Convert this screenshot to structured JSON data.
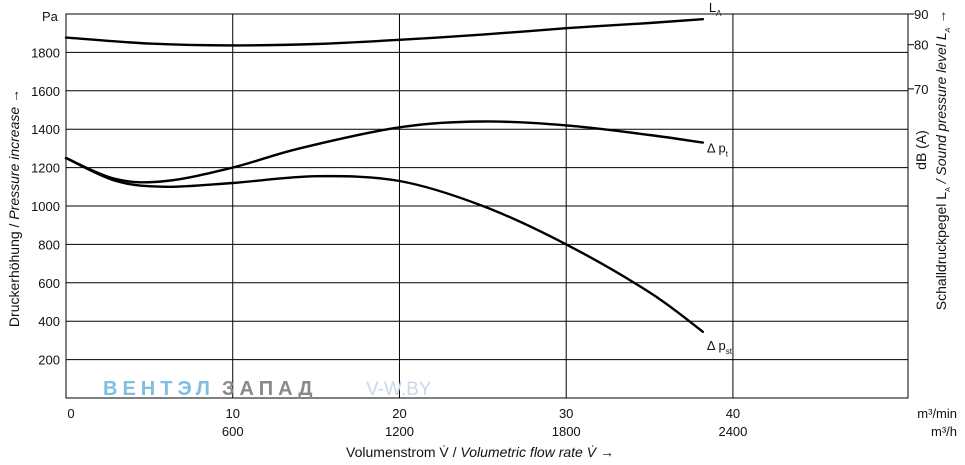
{
  "chart_data": {
    "type": "line",
    "x_label_de": "Volumenstrom V̇ / ",
    "x_label_en": "Volumetric flow rate V̇ →",
    "y_label_de": "Druckerhöhung / ",
    "y_label_en": "Pressure increase →",
    "y2_label_de": "Schalldruckpegel L",
    "y2_label_sub": "A",
    "y2_label_en_pre": " / Sound pressure level L",
    "y2_label_en_sub": "A",
    "y2_label_en_post": " →",
    "y2_unit": "dB (A)",
    "y_unit": "Pa",
    "x_unit_min": "m³/min",
    "x_unit_h": "m³/h",
    "xlim": [
      0,
      50.5
    ],
    "ylim": [
      0,
      2000
    ],
    "x_ticks": [
      0,
      10,
      20,
      30,
      40
    ],
    "x_tick_labels": [
      "0",
      "10",
      "20",
      "30",
      "40"
    ],
    "x2_tick_labels": [
      "600",
      "1200",
      "1800",
      "2400"
    ],
    "x2_tick_positions": [
      10,
      20,
      30,
      40
    ],
    "y_ticks": [
      200,
      400,
      600,
      800,
      1000,
      1200,
      1400,
      1600,
      1800
    ],
    "y_tick_labels": [
      "200",
      "400",
      "600",
      "800",
      "1000",
      "1200",
      "1400",
      "1600",
      "1800"
    ],
    "y2_ticks": [
      70,
      80,
      90
    ],
    "y2_tick_labels": [
      "70",
      "80",
      "90"
    ],
    "y2_tick_positions": [
      1610,
      1840,
      2000
    ],
    "grid": true,
    "series": [
      {
        "name": "L",
        "name_sub": "A",
        "axis": "right (dB(A))",
        "x": [
          0,
          5,
          10,
          15,
          20,
          25,
          30,
          35,
          38.2
        ],
        "y": [
          83.7,
          82.1,
          81.6,
          82.0,
          83.1,
          84.5,
          86.2,
          87.6,
          88.6
        ]
      },
      {
        "name": "Δ p",
        "name_sub": "t",
        "axis": "left (Pa)",
        "x": [
          0,
          3,
          6,
          10,
          14,
          20,
          25,
          30,
          35,
          38.2
        ],
        "y": [
          1250,
          1140,
          1130,
          1200,
          1300,
          1410,
          1440,
          1420,
          1370,
          1330
        ]
      },
      {
        "name": "Δ p",
        "name_sub": "st",
        "axis": "left (Pa)",
        "x": [
          0,
          3,
          6,
          10,
          15,
          20,
          25,
          30,
          35,
          38.2
        ],
        "y": [
          1250,
          1130,
          1100,
          1120,
          1155,
          1130,
          1000,
          800,
          550,
          345
        ]
      }
    ]
  },
  "watermark": {
    "part1": "ВЕНТЭЛ",
    "part2": "ЗАПАД",
    "part3": "V-W.BY"
  }
}
